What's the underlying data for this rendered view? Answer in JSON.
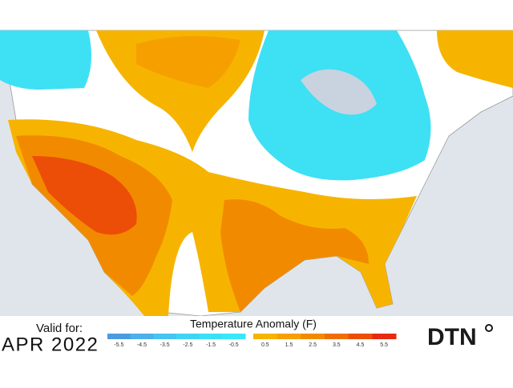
{
  "footer": {
    "valid_label": "Valid for:",
    "valid_date": "APR 2022",
    "brand": "DTN"
  },
  "legend": {
    "title": "Temperature Anomaly (F)",
    "cold_labels": [
      "-5.5",
      "-4.5",
      "-3.5",
      "-2.5",
      "-1.5",
      "-0.5"
    ],
    "warm_labels": [
      "0.5",
      "1.5",
      "2.5",
      "3.5",
      "4.5",
      "5.5"
    ],
    "cold_colors": [
      "#4a9be0",
      "#4cb0ea",
      "#46c4f0",
      "#40d4f4",
      "#3ce0f6",
      "#38e8f8"
    ],
    "warm_colors": [
      "#f6b400",
      "#f5a000",
      "#f28a00",
      "#ef6e00",
      "#ec4e08",
      "#e62a10"
    ]
  }
}
